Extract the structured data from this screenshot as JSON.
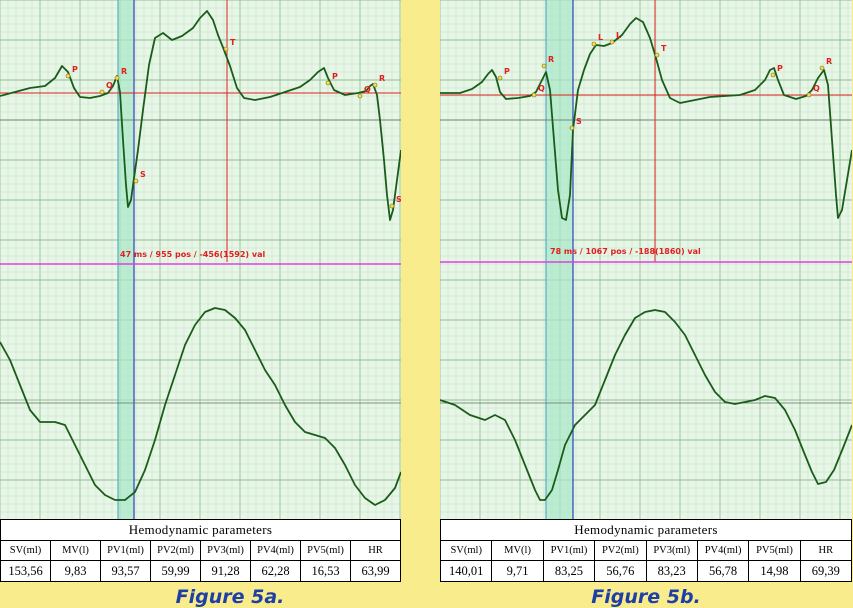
{
  "colors": {
    "page_background": "#f9ec8c",
    "grid_background": "#e8f6e8",
    "grid_minor": "#bfe0bf",
    "grid_major": "#8fc08f",
    "trace": "#1a5c1a",
    "cursor_red": "#e02020",
    "divider_magenta": "#e040e0",
    "selection_band": "#a8e8c8",
    "marker_blue": "#3040c0",
    "caption_blue": "#1f3fa8"
  },
  "figures": [
    {
      "caption": "Figure 5a.",
      "readout": "47 ms / 955 pos / -456(1592) val",
      "table": {
        "title": "Hemodynamic  parameters",
        "headers": [
          "SV(ml)",
          "MV(l)",
          "PV1(ml)",
          "PV2(ml)",
          "PV3(ml)",
          "PV4(ml)",
          "PV5(ml)",
          "HR"
        ],
        "values": [
          "153,56",
          "9,83",
          "93,57",
          "59,99",
          "91,28",
          "62,28",
          "16,53",
          "63,99"
        ]
      },
      "chart_data": {
        "type": "line",
        "panels": [
          "ECG",
          "Impedance rheogram"
        ],
        "wave_labels": [
          "P",
          "Q",
          "R",
          "S",
          "T",
          "P",
          "Q",
          "R",
          "S"
        ]
      }
    },
    {
      "caption": "Figure 5b.",
      "readout": "78 ms / 1067 pos / -188(1860) val",
      "table": {
        "title": "Hemodynamic  parameters",
        "headers": [
          "SV(ml)",
          "MV(l)",
          "PV1(ml)",
          "PV2(ml)",
          "PV3(ml)",
          "PV4(ml)",
          "PV5(ml)",
          "HR"
        ],
        "values": [
          "140,01",
          "9,71",
          "83,25",
          "56,76",
          "83,23",
          "56,78",
          "14,98",
          "69,39"
        ]
      },
      "chart_data": {
        "type": "line",
        "panels": [
          "ECG",
          "Impedance rheogram"
        ],
        "wave_labels": [
          "P",
          "Q",
          "R",
          "S",
          "L",
          "L",
          "T",
          "P",
          "Q",
          "R"
        ]
      }
    }
  ]
}
